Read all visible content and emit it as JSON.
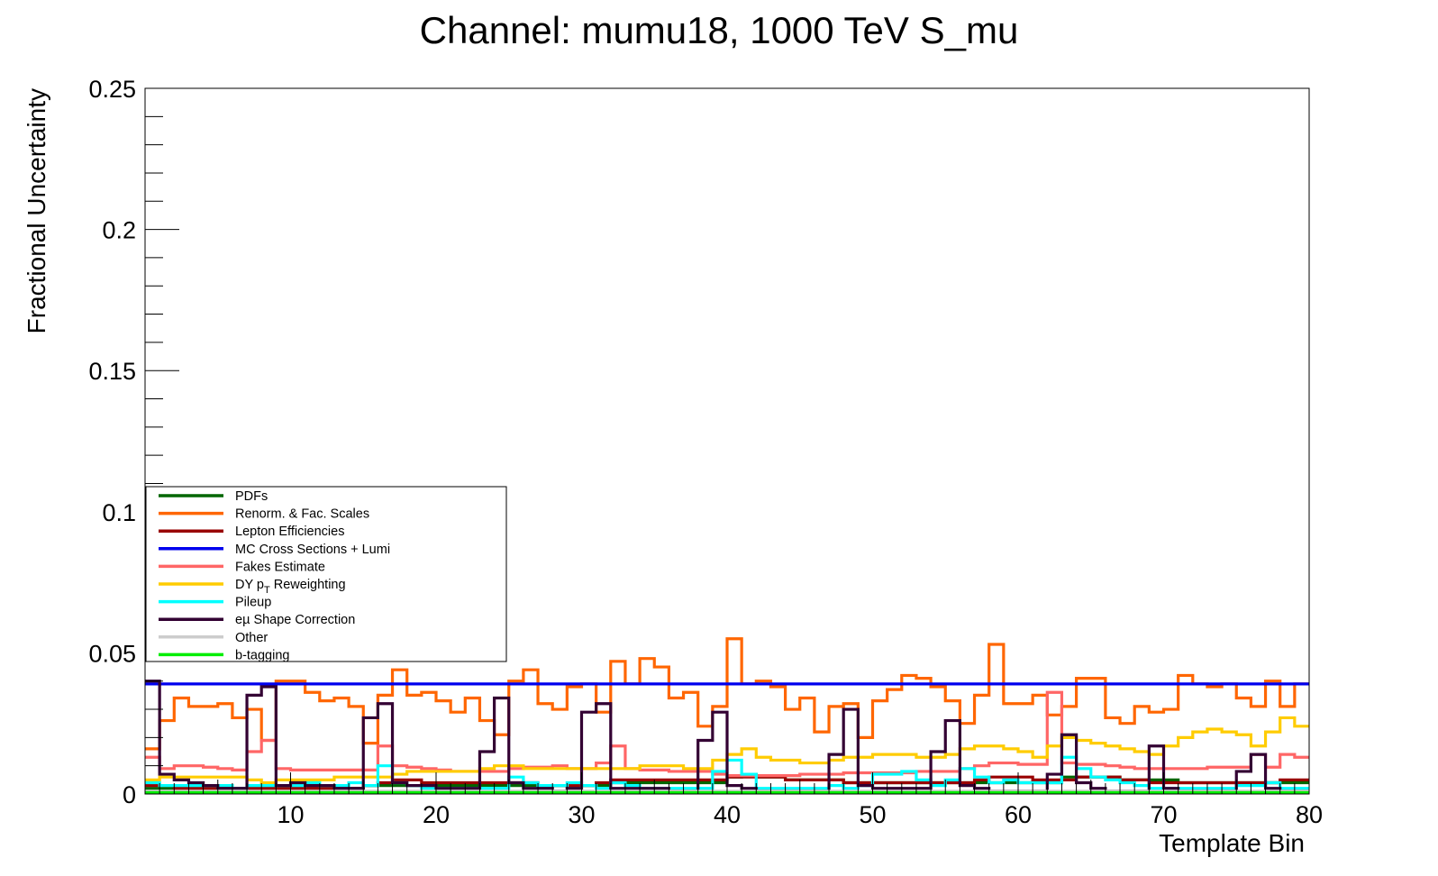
{
  "chart_data": {
    "type": "line",
    "title": "Channel: mumu18, 1000 TeV S_mu",
    "xlabel": "Template Bin",
    "ylabel": "Fractional Uncertainty",
    "xlim": [
      0,
      80
    ],
    "ylim": [
      0,
      0.25
    ],
    "x_ticks": [
      "10",
      "20",
      "30",
      "40",
      "50",
      "60",
      "70",
      "80"
    ],
    "y_ticks": [
      "0",
      "0.05",
      "0.1",
      "0.15",
      "0.2",
      "0.25"
    ],
    "grid": false,
    "legend_position": "bottom-left",
    "step": true,
    "series": [
      {
        "name": "PDFs",
        "color": "#006600",
        "values": [
          0.002,
          0.002,
          0.002,
          0.002,
          0.002,
          0.002,
          0.002,
          0.002,
          0.002,
          0.002,
          0.002,
          0.002,
          0.002,
          0.002,
          0.002,
          0.003,
          0.003,
          0.003,
          0.003,
          0.003,
          0.003,
          0.003,
          0.003,
          0.003,
          0.003,
          0.003,
          0.003,
          0.003,
          0.003,
          0.003,
          0.003,
          0.003,
          0.004,
          0.004,
          0.004,
          0.004,
          0.004,
          0.004,
          0.004,
          0.004,
          0.006,
          0.007,
          0.006,
          0.006,
          0.005,
          0.005,
          0.005,
          0.005,
          0.004,
          0.004,
          0.004,
          0.004,
          0.004,
          0.004,
          0.004,
          0.004,
          0.004,
          0.004,
          0.004,
          0.004,
          0.004,
          0.004,
          0.004,
          0.006,
          0.006,
          0.006,
          0.006,
          0.005,
          0.005,
          0.005,
          0.005,
          0.004,
          0.004,
          0.004,
          0.004,
          0.004,
          0.004,
          0.004,
          0.004,
          0.004
        ]
      },
      {
        "name": "Renorm. & Fac. Scales",
        "color": "#ff6600",
        "values": [
          0.016,
          0.026,
          0.034,
          0.031,
          0.031,
          0.032,
          0.027,
          0.03,
          0.019,
          0.04,
          0.04,
          0.036,
          0.033,
          0.034,
          0.031,
          0.018,
          0.035,
          0.044,
          0.035,
          0.036,
          0.033,
          0.029,
          0.034,
          0.026,
          0.021,
          0.04,
          0.044,
          0.032,
          0.03,
          0.038,
          0.039,
          0.029,
          0.047,
          0.039,
          0.048,
          0.045,
          0.034,
          0.036,
          0.024,
          0.031,
          0.055,
          0.039,
          0.04,
          0.038,
          0.03,
          0.034,
          0.022,
          0.031,
          0.032,
          0.02,
          0.033,
          0.037,
          0.042,
          0.041,
          0.038,
          0.033,
          0.025,
          0.035,
          0.053,
          0.032,
          0.032,
          0.035,
          0.028,
          0.031,
          0.041,
          0.041,
          0.027,
          0.025,
          0.031,
          0.029,
          0.03,
          0.042,
          0.039,
          0.038,
          0.039,
          0.034,
          0.031,
          0.04,
          0.031,
          0.039
        ]
      },
      {
        "name": "Lepton Efficiencies",
        "color": "#990000",
        "values": [
          0.003,
          0.003,
          0.002,
          0.002,
          0.002,
          0.002,
          0.002,
          0.002,
          0.002,
          0.002,
          0.002,
          0.002,
          0.002,
          0.002,
          0.002,
          0.003,
          0.004,
          0.005,
          0.005,
          0.004,
          0.004,
          0.004,
          0.004,
          0.004,
          0.004,
          0.004,
          0.004,
          0.003,
          0.003,
          0.003,
          0.003,
          0.004,
          0.005,
          0.005,
          0.005,
          0.005,
          0.005,
          0.005,
          0.005,
          0.005,
          0.006,
          0.006,
          0.006,
          0.006,
          0.005,
          0.005,
          0.005,
          0.005,
          0.004,
          0.004,
          0.004,
          0.004,
          0.004,
          0.004,
          0.004,
          0.004,
          0.004,
          0.005,
          0.006,
          0.006,
          0.006,
          0.005,
          0.005,
          0.005,
          0.006,
          0.006,
          0.006,
          0.005,
          0.005,
          0.004,
          0.004,
          0.004,
          0.004,
          0.004,
          0.004,
          0.004,
          0.004,
          0.004,
          0.005,
          0.005
        ]
      },
      {
        "name": "MC Cross Sections + Lumi",
        "color": "#0000ee",
        "values": [
          0.039,
          0.039,
          0.039,
          0.039,
          0.039,
          0.039,
          0.039,
          0.039,
          0.039,
          0.039,
          0.039,
          0.039,
          0.039,
          0.039,
          0.039,
          0.039,
          0.039,
          0.039,
          0.039,
          0.039,
          0.039,
          0.039,
          0.039,
          0.039,
          0.039,
          0.039,
          0.039,
          0.039,
          0.039,
          0.039,
          0.039,
          0.039,
          0.039,
          0.039,
          0.039,
          0.039,
          0.039,
          0.039,
          0.039,
          0.039,
          0.039,
          0.039,
          0.039,
          0.039,
          0.039,
          0.039,
          0.039,
          0.039,
          0.039,
          0.039,
          0.039,
          0.039,
          0.039,
          0.039,
          0.039,
          0.039,
          0.039,
          0.039,
          0.039,
          0.039,
          0.039,
          0.039,
          0.039,
          0.039,
          0.039,
          0.039,
          0.039,
          0.039,
          0.039,
          0.039,
          0.039,
          0.039,
          0.039,
          0.039,
          0.039,
          0.039,
          0.039,
          0.039,
          0.039,
          0.039
        ]
      },
      {
        "name": "Fakes Estimate",
        "color": "#ff6666",
        "values": [
          0.013,
          0.009,
          0.01,
          0.01,
          0.0095,
          0.009,
          0.0085,
          0.015,
          0.019,
          0.009,
          0.0085,
          0.0085,
          0.0085,
          0.0085,
          0.0085,
          0.0085,
          0.017,
          0.01,
          0.0095,
          0.009,
          0.0085,
          0.008,
          0.008,
          0.008,
          0.008,
          0.009,
          0.0095,
          0.0095,
          0.01,
          0.009,
          0.009,
          0.011,
          0.017,
          0.009,
          0.0085,
          0.0085,
          0.008,
          0.008,
          0.008,
          0.007,
          0.0065,
          0.0065,
          0.0065,
          0.0065,
          0.0065,
          0.007,
          0.007,
          0.007,
          0.0075,
          0.0075,
          0.0075,
          0.0075,
          0.0075,
          0.008,
          0.008,
          0.008,
          0.009,
          0.01,
          0.011,
          0.011,
          0.0105,
          0.0105,
          0.036,
          0.011,
          0.0105,
          0.0105,
          0.01,
          0.0095,
          0.009,
          0.009,
          0.009,
          0.009,
          0.009,
          0.0095,
          0.0095,
          0.0095,
          0.014,
          0.0095,
          0.014,
          0.013
        ]
      },
      {
        "name": "DY p_{T} Reweighting",
        "color": "#ffcc00",
        "values": [
          0.005,
          0.006,
          0.006,
          0.006,
          0.006,
          0.006,
          0.006,
          0.005,
          0.004,
          0.005,
          0.005,
          0.005,
          0.005,
          0.006,
          0.006,
          0.006,
          0.006,
          0.007,
          0.008,
          0.008,
          0.008,
          0.008,
          0.008,
          0.009,
          0.01,
          0.01,
          0.009,
          0.009,
          0.009,
          0.009,
          0.009,
          0.009,
          0.009,
          0.009,
          0.01,
          0.01,
          0.01,
          0.009,
          0.009,
          0.012,
          0.014,
          0.016,
          0.013,
          0.012,
          0.012,
          0.011,
          0.011,
          0.012,
          0.013,
          0.013,
          0.014,
          0.014,
          0.014,
          0.013,
          0.013,
          0.014,
          0.016,
          0.017,
          0.017,
          0.016,
          0.015,
          0.013,
          0.017,
          0.02,
          0.019,
          0.018,
          0.017,
          0.016,
          0.015,
          0.014,
          0.017,
          0.02,
          0.022,
          0.023,
          0.022,
          0.021,
          0.017,
          0.022,
          0.027,
          0.024
        ]
      },
      {
        "name": "Pileup",
        "color": "#00ffff",
        "values": [
          0.004,
          0.003,
          0.003,
          0.003,
          0.003,
          0.003,
          0.002,
          0.003,
          0.003,
          0.003,
          0.003,
          0.004,
          0.003,
          0.003,
          0.004,
          0.003,
          0.01,
          0.004,
          0.003,
          0.002,
          0.002,
          0.002,
          0.002,
          0.002,
          0.002,
          0.006,
          0.004,
          0.003,
          0.003,
          0.004,
          0.003,
          0.002,
          0.004,
          0.003,
          0.002,
          0.002,
          0.002,
          0.002,
          0.002,
          0.008,
          0.012,
          0.007,
          0.002,
          0.002,
          0.002,
          0.002,
          0.002,
          0.003,
          0.002,
          0.003,
          0.007,
          0.007,
          0.008,
          0.005,
          0.003,
          0.005,
          0.009,
          0.006,
          0.004,
          0.005,
          0.004,
          0.004,
          0.004,
          0.013,
          0.009,
          0.006,
          0.005,
          0.004,
          0.003,
          0.002,
          0.002,
          0.002,
          0.002,
          0.002,
          0.002,
          0.003,
          0.003,
          0.004,
          0.002,
          0.002
        ]
      },
      {
        "name": "eµ Shape Correction",
        "color": "#330033",
        "values": [
          0.04,
          0.007,
          0.005,
          0.004,
          0.003,
          0.002,
          0.002,
          0.035,
          0.038,
          0.003,
          0.004,
          0.003,
          0.003,
          0.002,
          0.002,
          0.027,
          0.032,
          0.004,
          0.003,
          0.003,
          0.002,
          0.002,
          0.002,
          0.015,
          0.034,
          0.004,
          0.002,
          0.002,
          0.001,
          0.002,
          0.029,
          0.032,
          0.002,
          0.002,
          0.002,
          0.002,
          0.001,
          0.001,
          0.019,
          0.029,
          0.003,
          0.002,
          0.001,
          0.001,
          0.001,
          0.001,
          0.001,
          0.014,
          0.03,
          0.003,
          0.002,
          0.002,
          0.002,
          0.002,
          0.015,
          0.026,
          0.003,
          0.002,
          0.001,
          0.001,
          0.001,
          0.001,
          0.007,
          0.021,
          0.004,
          0.002,
          0.001,
          0.001,
          0.001,
          0.017,
          0.002,
          0.001,
          0.001,
          0.001,
          0.001,
          0.008,
          0.014,
          0.002,
          0.001,
          0.001
        ]
      },
      {
        "name": "Other",
        "color": "#cccccc",
        "values": [
          0.001,
          0.001,
          0.001,
          0.001,
          0.001,
          0.001,
          0.001,
          0.001,
          0.001,
          0.001,
          0.001,
          0.001,
          0.001,
          0.001,
          0.001,
          0.001,
          0.001,
          0.001,
          0.001,
          0.001,
          0.001,
          0.001,
          0.001,
          0.001,
          0.001,
          0.001,
          0.001,
          0.001,
          0.001,
          0.001,
          0.001,
          0.001,
          0.001,
          0.001,
          0.001,
          0.001,
          0.001,
          0.001,
          0.001,
          0.001,
          0.001,
          0.001,
          0.001,
          0.001,
          0.001,
          0.001,
          0.001,
          0.001,
          0.001,
          0.001,
          0.001,
          0.001,
          0.001,
          0.001,
          0.001,
          0.001,
          0.001,
          0.001,
          0.001,
          0.001,
          0.001,
          0.001,
          0.001,
          0.001,
          0.001,
          0.001,
          0.001,
          0.001,
          0.001,
          0.001,
          0.001,
          0.001,
          0.001,
          0.001,
          0.001,
          0.001,
          0.001,
          0.001,
          0.001,
          0.001
        ]
      },
      {
        "name": "b-tagging",
        "color": "#00ee00",
        "values": [
          0.0005,
          0.0005,
          0.0005,
          0.0005,
          0.0005,
          0.0005,
          0.0005,
          0.0005,
          0.0005,
          0.0005,
          0.0005,
          0.0005,
          0.0005,
          0.0005,
          0.0005,
          0.0005,
          0.0005,
          0.0005,
          0.0005,
          0.0005,
          0.0005,
          0.0005,
          0.0005,
          0.0005,
          0.0005,
          0.0005,
          0.0005,
          0.0005,
          0.0005,
          0.0005,
          0.0005,
          0.0005,
          0.0005,
          0.0005,
          0.0005,
          0.0005,
          0.0005,
          0.0005,
          0.0005,
          0.0005,
          0.0005,
          0.0005,
          0.0005,
          0.0005,
          0.0005,
          0.0005,
          0.0005,
          0.0005,
          0.0005,
          0.0005,
          0.0005,
          0.0005,
          0.0005,
          0.0005,
          0.0005,
          0.0005,
          0.0005,
          0.0005,
          0.0005,
          0.0005,
          0.0005,
          0.0005,
          0.0005,
          0.0005,
          0.0005,
          0.0005,
          0.0005,
          0.0005,
          0.0005,
          0.0005,
          0.0005,
          0.0005,
          0.0005,
          0.0005,
          0.0005,
          0.0005,
          0.0005,
          0.0005,
          0.0005,
          0.0005
        ]
      }
    ]
  }
}
